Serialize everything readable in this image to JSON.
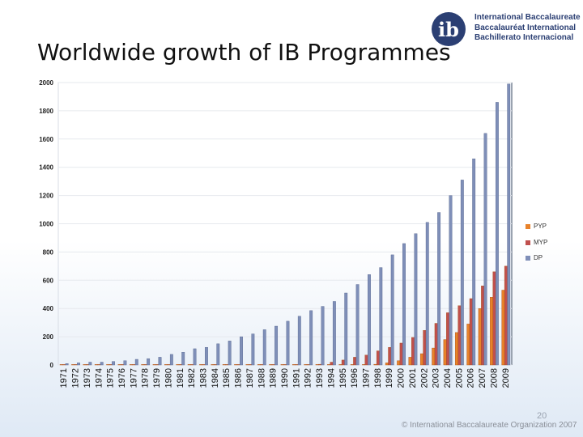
{
  "slide": {
    "title": "Worldwide growth of IB Programmes",
    "page_number": "20",
    "copyright": "© International Baccalaureate Organization 2007"
  },
  "logo": {
    "mark": "ib",
    "lines": [
      "International Baccalaureate",
      "Baccalauréat International",
      "Bachillerato Internacional"
    ]
  },
  "colors": {
    "pyp": "#e8822b",
    "myp": "#c0504d",
    "dp": "#7f8fb8",
    "brand": "#2b3f73"
  },
  "chart_data": {
    "type": "bar",
    "title": "Worldwide growth of IB Programmes",
    "xlabel": "",
    "ylabel": "",
    "ylim": [
      0,
      2000
    ],
    "yticks": [
      0,
      200,
      400,
      600,
      800,
      1000,
      1200,
      1400,
      1600,
      1800,
      2000
    ],
    "legend_position": "right",
    "categories": [
      "1971",
      "1972",
      "1973",
      "1974",
      "1975",
      "1976",
      "1977",
      "1978",
      "1979",
      "1980",
      "1981",
      "1982",
      "1983",
      "1984",
      "1985",
      "1986",
      "1987",
      "1988",
      "1989",
      "1990",
      "1991",
      "1992",
      "1993",
      "1994",
      "1995",
      "1996",
      "1997",
      "1998",
      "1999",
      "2000",
      "2001",
      "2002",
      "2003",
      "2004",
      "2005",
      "2006",
      "2007",
      "2008",
      "2009"
    ],
    "series": [
      {
        "name": "PYP",
        "values": [
          0,
          0,
          0,
          0,
          0,
          0,
          0,
          0,
          0,
          0,
          0,
          0,
          0,
          0,
          0,
          0,
          0,
          0,
          0,
          0,
          0,
          0,
          0,
          0,
          0,
          0,
          0,
          5,
          15,
          30,
          55,
          80,
          120,
          180,
          230,
          290,
          400,
          480,
          530
        ]
      },
      {
        "name": "MYP",
        "values": [
          0,
          0,
          0,
          0,
          0,
          0,
          0,
          0,
          0,
          0,
          0,
          0,
          0,
          0,
          0,
          0,
          0,
          0,
          0,
          0,
          0,
          0,
          5,
          20,
          35,
          55,
          70,
          100,
          125,
          155,
          195,
          245,
          295,
          370,
          420,
          470,
          560,
          660,
          700
        ]
      },
      {
        "name": "DP",
        "values": [
          10,
          15,
          20,
          20,
          25,
          30,
          40,
          45,
          55,
          75,
          90,
          115,
          125,
          150,
          170,
          200,
          220,
          250,
          275,
          310,
          345,
          385,
          415,
          450,
          510,
          570,
          640,
          690,
          780,
          860,
          930,
          1010,
          1080,
          1200,
          1310,
          1460,
          1640,
          1860,
          1990
        ]
      }
    ]
  }
}
